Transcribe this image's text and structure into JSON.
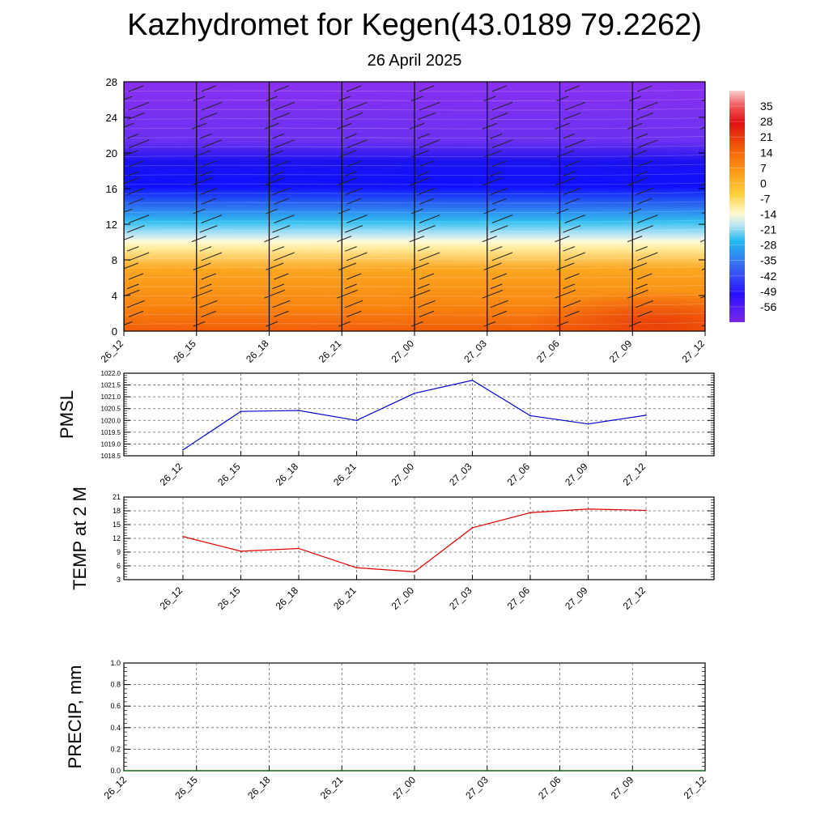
{
  "title": "Kazhydromet for Kegen(43.0189 79.2262)",
  "subtitle": "26 April 2025",
  "chart_data": [
    {
      "type": "heatmap",
      "time_labels": [
        "26_12",
        "26_15",
        "26_18",
        "26_21",
        "27_00",
        "27_03",
        "27_06",
        "27_09",
        "27_12"
      ],
      "y_ticks": [
        0,
        4,
        8,
        12,
        16,
        20,
        24,
        28
      ],
      "ylim": [
        0,
        28
      ],
      "colorbar_labels": [
        "35",
        "28",
        "21",
        "14",
        "7",
        "0",
        "-7",
        "-14",
        "-21",
        "-28",
        "-35",
        "-42",
        "-49",
        "-56"
      ],
      "colorbar_range": [
        -63,
        42
      ],
      "colors": {
        "warm_low": "#f25e0a",
        "warm_mid": "#fb9a18",
        "yellow": "#fffad2",
        "pale_blue": "#b8e2f2",
        "cyan": "#20b8f0",
        "blue": "#1010ff",
        "violet": "#8030f0"
      }
    },
    {
      "type": "line",
      "ylabel": "PMSL",
      "x": [
        "26_12",
        "26_15",
        "26_18",
        "26_21",
        "27_00",
        "27_03",
        "27_06",
        "27_09",
        "27_12"
      ],
      "y_ticks": [
        "1018.5",
        "1019.0",
        "1019.5",
        "1020.0",
        "1020.5",
        "1021.0",
        "1021.5",
        "1022.0"
      ],
      "ylim": [
        1018.5,
        1022.0
      ],
      "series": [
        {
          "values": [
            1018.75,
            1020.38,
            1020.42,
            1020.0,
            1021.15,
            1021.7,
            1020.2,
            1019.85,
            1020.22
          ],
          "color": "#0000cc"
        }
      ],
      "grid": true
    },
    {
      "type": "line",
      "ylabel": "TEMP at 2 M",
      "x": [
        "26_12",
        "26_15",
        "26_18",
        "26_21",
        "27_00",
        "27_03",
        "27_06",
        "27_09",
        "27_12"
      ],
      "y_ticks": [
        "3",
        "6",
        "9",
        "12",
        "15",
        "18",
        "21"
      ],
      "ylim": [
        3,
        21
      ],
      "series": [
        {
          "values": [
            12.4,
            9.2,
            9.8,
            5.6,
            4.7,
            14.3,
            17.6,
            18.4,
            18.1
          ],
          "color": "#e00000"
        }
      ],
      "grid": true
    },
    {
      "type": "line",
      "ylabel": "PRECIP, mm",
      "x": [
        "26_12",
        "26_15",
        "26_18",
        "26_21",
        "27_00",
        "27_03",
        "27_06",
        "27_09",
        "27_12"
      ],
      "y_ticks": [
        "0.0",
        "0.2",
        "0.4",
        "0.6",
        "0.8",
        "1.0"
      ],
      "ylim": [
        0,
        1
      ],
      "series": [
        {
          "values": [
            0,
            0,
            0,
            0,
            0,
            0,
            0,
            0,
            0
          ],
          "color": "#006400"
        }
      ],
      "grid": true
    }
  ]
}
